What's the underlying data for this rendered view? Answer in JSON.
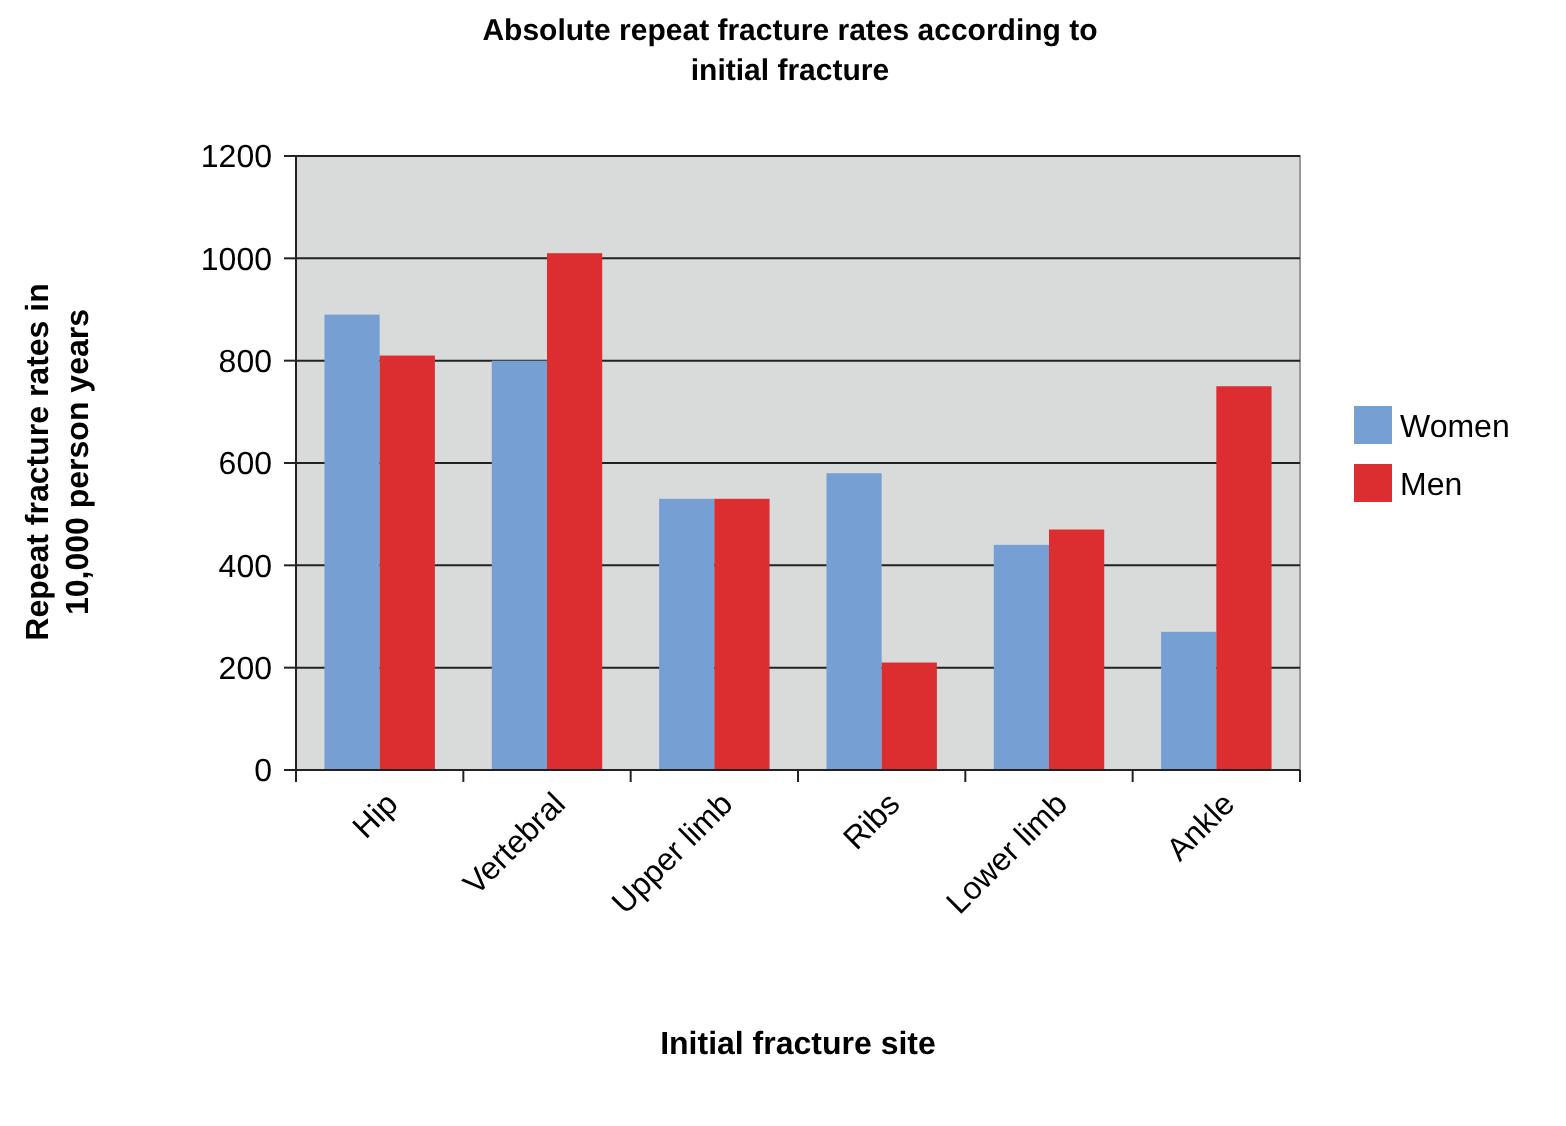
{
  "chart_data": {
    "type": "bar",
    "title": "Absolute repeat fracture rates according to initial fracture",
    "xlabel": "Initial fracture site",
    "ylabel": "Repeat fracture rates in 10,000 person years",
    "categories": [
      "Hip",
      "Vertebral",
      "Upper limb",
      "Ribs",
      "Lower limb",
      "Ankle"
    ],
    "series": [
      {
        "name": "Women",
        "color": "#76a0d3",
        "values": [
          890,
          800,
          530,
          580,
          440,
          270
        ]
      },
      {
        "name": "Men",
        "color": "#dc2d30",
        "values": [
          810,
          1010,
          530,
          210,
          470,
          750
        ]
      }
    ],
    "ylim": [
      0,
      1200
    ],
    "yticks": [
      0,
      200,
      400,
      600,
      800,
      1000,
      1200
    ],
    "grid": "y",
    "legend": "right"
  }
}
